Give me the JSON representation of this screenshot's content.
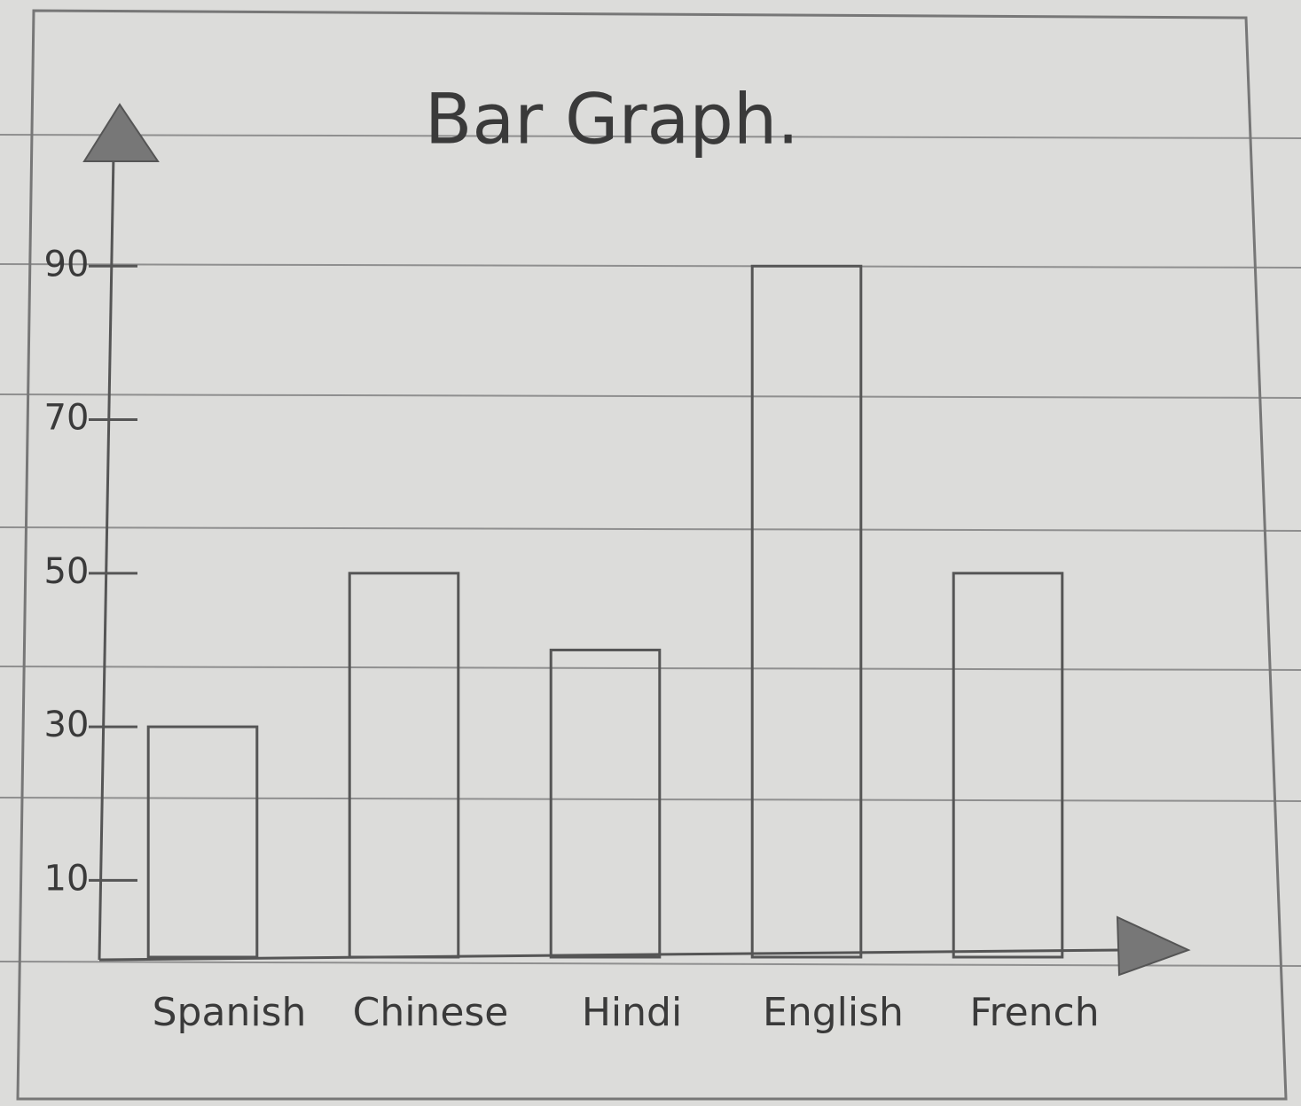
{
  "chart_data": {
    "type": "bar",
    "title": "Bar Graph.",
    "categories": [
      "Spanish",
      "Chinese",
      "Hindi",
      "English",
      "French"
    ],
    "values": [
      30,
      50,
      40,
      90,
      50
    ],
    "color": "#555555",
    "ylim": [
      0,
      110
    ],
    "yticks": [
      10,
      30,
      50,
      70,
      90
    ]
  }
}
